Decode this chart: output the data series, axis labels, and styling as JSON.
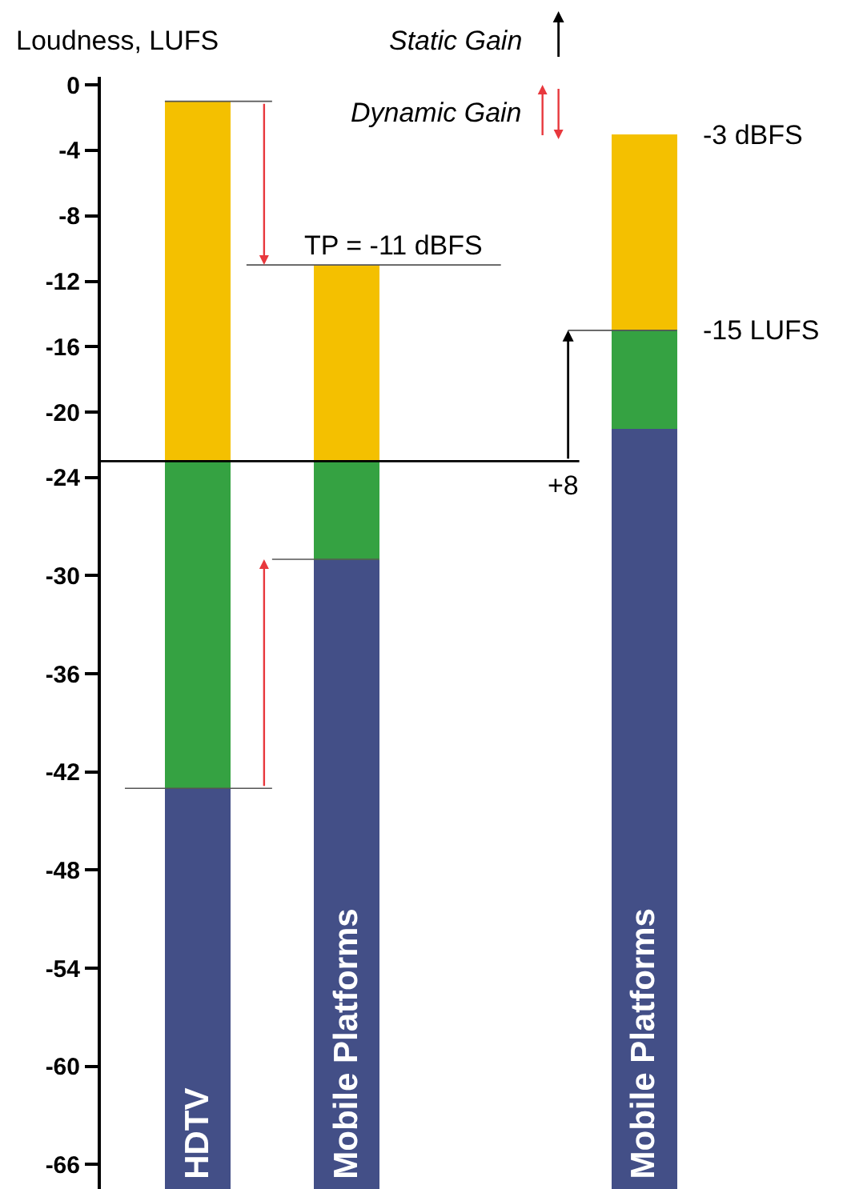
{
  "chart_data": {
    "type": "bar",
    "ylabel": "Loudness, LUFS",
    "categories": [
      "HDTV",
      "Mobile Platforms",
      null,
      "Mobile Platforms"
    ],
    "series": [
      {
        "color": "#434f87",
        "base": [
          -67.5,
          -67.5,
          null,
          -67.5
        ],
        "values": [
          24.5,
          38.5,
          null,
          46.5
        ]
      },
      {
        "color": "#35a242",
        "base": [
          -43,
          -29,
          null,
          -21
        ],
        "values": [
          20,
          6,
          null,
          6
        ]
      },
      {
        "color": "#f4c000",
        "base": [
          -23,
          -23,
          null,
          -15
        ],
        "values": [
          22,
          12,
          null,
          12
        ]
      }
    ],
    "ylim": [
      -67.5,
      0.5
    ],
    "yticks": [
      0,
      -4,
      -8,
      -12,
      -16,
      -20,
      -24,
      -30,
      -36,
      -42,
      -48,
      -54,
      -60,
      -66
    ],
    "ref_lines": [
      {
        "axis": "y",
        "value": -23,
        "color": "#000000"
      },
      {
        "axis": "y",
        "value": -1,
        "color": "#555555"
      },
      {
        "axis": "y",
        "value": -11,
        "color": "#555555",
        "label": "TP = -11 dBFS"
      },
      {
        "axis": "y",
        "value": -43,
        "color": "#555555"
      },
      {
        "axis": "y",
        "value": -29,
        "color": "#555555"
      },
      {
        "axis": "y",
        "value": -15,
        "color": "#555555",
        "label": "-15 LUFS"
      }
    ],
    "annotations": [
      "Static Gain",
      "Dynamic Gain",
      "-3 dBFS",
      {
        "text": "+8",
        "y": -23
      }
    ]
  }
}
